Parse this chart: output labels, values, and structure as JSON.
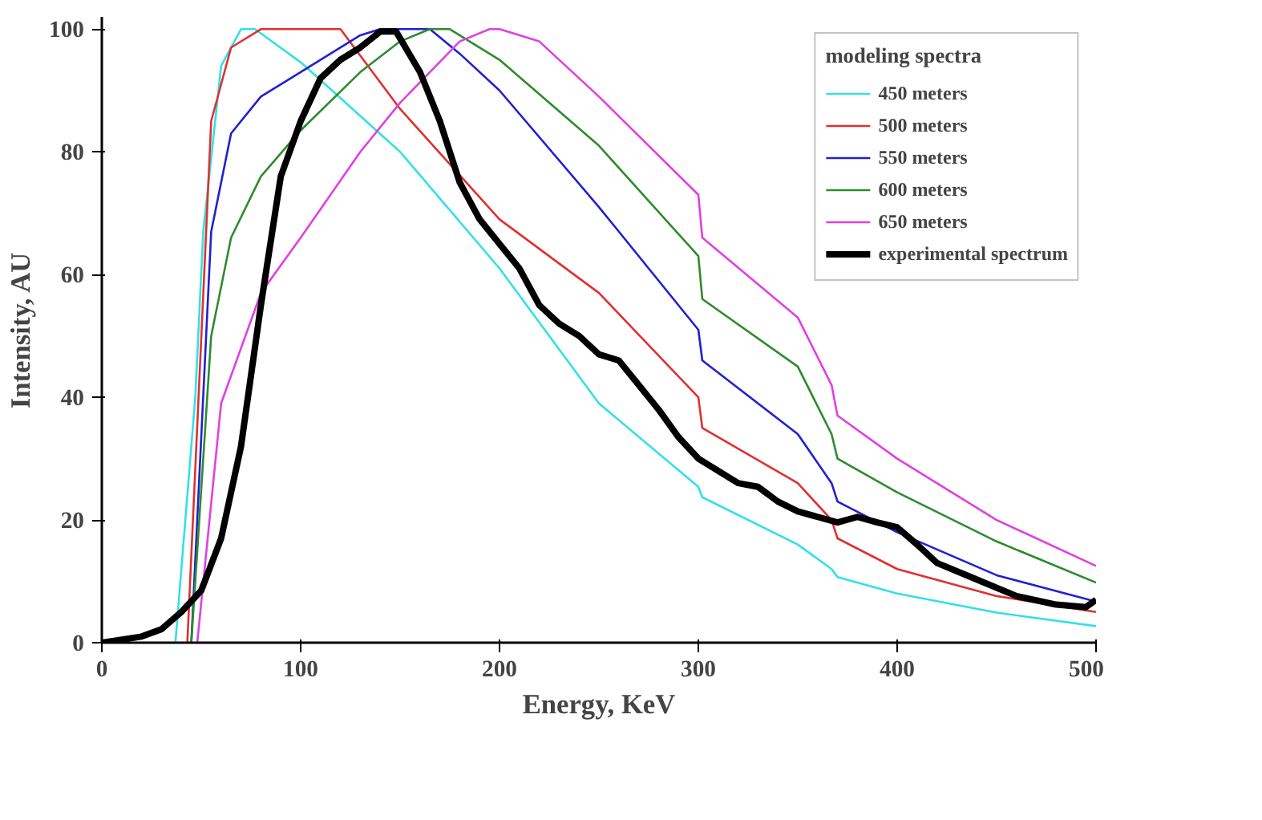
{
  "chart_data": {
    "type": "line",
    "xlabel": "Energy, KeV",
    "ylabel": "Intensity, AU",
    "legend_title": "modeling spectra",
    "xlim": [
      0,
      500
    ],
    "ylim": [
      0,
      102
    ],
    "xticks": [
      0,
      100,
      200,
      300,
      400,
      500
    ],
    "yticks": [
      0,
      20,
      40,
      60,
      80,
      100
    ],
    "grid": false,
    "legend": "right",
    "marker": "none",
    "line_style": "solid",
    "series": [
      {
        "name": "450 meters",
        "color": "#33e0e8",
        "x": [
          37,
          47,
          51,
          60,
          70,
          77,
          100,
          150,
          200,
          250,
          300,
          302,
          350,
          367,
          370,
          400,
          450,
          500
        ],
        "values": [
          0,
          40,
          67,
          94,
          100,
          100,
          94.6,
          80,
          61,
          39,
          25.4,
          23.7,
          16,
          12,
          10.7,
          8,
          4.9,
          2.7
        ]
      },
      {
        "name": "500 meters",
        "color": "#e03030",
        "x": [
          43,
          55,
          65,
          80,
          120,
          150,
          200,
          250,
          300,
          302,
          350,
          367,
          370,
          400,
          450,
          500
        ],
        "values": [
          0,
          85,
          97,
          100,
          100,
          87,
          69,
          57,
          40,
          35,
          26,
          20,
          17,
          12,
          7.6,
          5
        ]
      },
      {
        "name": "550 meters",
        "color": "#2020d0",
        "x": [
          45,
          55,
          65,
          80,
          100,
          130,
          140,
          165,
          180,
          200,
          250,
          300,
          302,
          350,
          367,
          370,
          400,
          450,
          500
        ],
        "values": [
          0,
          67,
          83,
          89,
          93,
          99,
          100,
          100,
          96,
          90,
          71,
          51,
          46,
          34,
          26,
          23,
          18,
          11,
          6.7
        ]
      },
      {
        "name": "600 meters",
        "color": "#2e8b2e",
        "x": [
          45,
          55,
          65,
          80,
          100,
          130,
          150,
          165,
          175,
          200,
          250,
          300,
          302,
          350,
          367,
          370,
          400,
          450,
          500
        ],
        "values": [
          0,
          50,
          66,
          76,
          83.5,
          93,
          98,
          100,
          100,
          95,
          81,
          63,
          56,
          45,
          34,
          30,
          24.5,
          16.5,
          9.8
        ]
      },
      {
        "name": "650 meters",
        "color": "#e040e0",
        "x": [
          48,
          60,
          80,
          100,
          130,
          150,
          180,
          195,
          200,
          220,
          250,
          300,
          302,
          350,
          367,
          370,
          400,
          450,
          500
        ],
        "values": [
          0,
          39,
          57,
          66,
          80,
          88,
          98,
          100,
          100,
          98,
          89,
          73,
          66,
          53,
          42,
          37,
          30,
          20,
          12.5
        ]
      },
      {
        "name": "experimental spectrum",
        "color": "#000000",
        "x": [
          0,
          20,
          30,
          40,
          50,
          60,
          70,
          80,
          90,
          100,
          110,
          120,
          130,
          140,
          148,
          160,
          170,
          180,
          190,
          200,
          210,
          220,
          230,
          240,
          250,
          260,
          270,
          280,
          290,
          300,
          310,
          320,
          330,
          340,
          350,
          360,
          370,
          380,
          390,
          400,
          410,
          420,
          440,
          460,
          480,
          495,
          500
        ],
        "values": [
          0,
          1,
          2.2,
          5,
          8.5,
          17,
          32,
          55,
          76,
          85,
          92,
          95,
          97,
          99.6,
          99.6,
          93,
          85,
          75,
          69,
          65,
          61,
          55,
          52,
          50,
          47,
          46,
          42,
          38,
          33.5,
          30,
          28,
          26,
          25.4,
          23,
          21.4,
          20.5,
          19.6,
          20.5,
          19.6,
          18.8,
          16,
          13,
          10.3,
          7.6,
          6.2,
          5.8,
          7
        ]
      }
    ]
  }
}
